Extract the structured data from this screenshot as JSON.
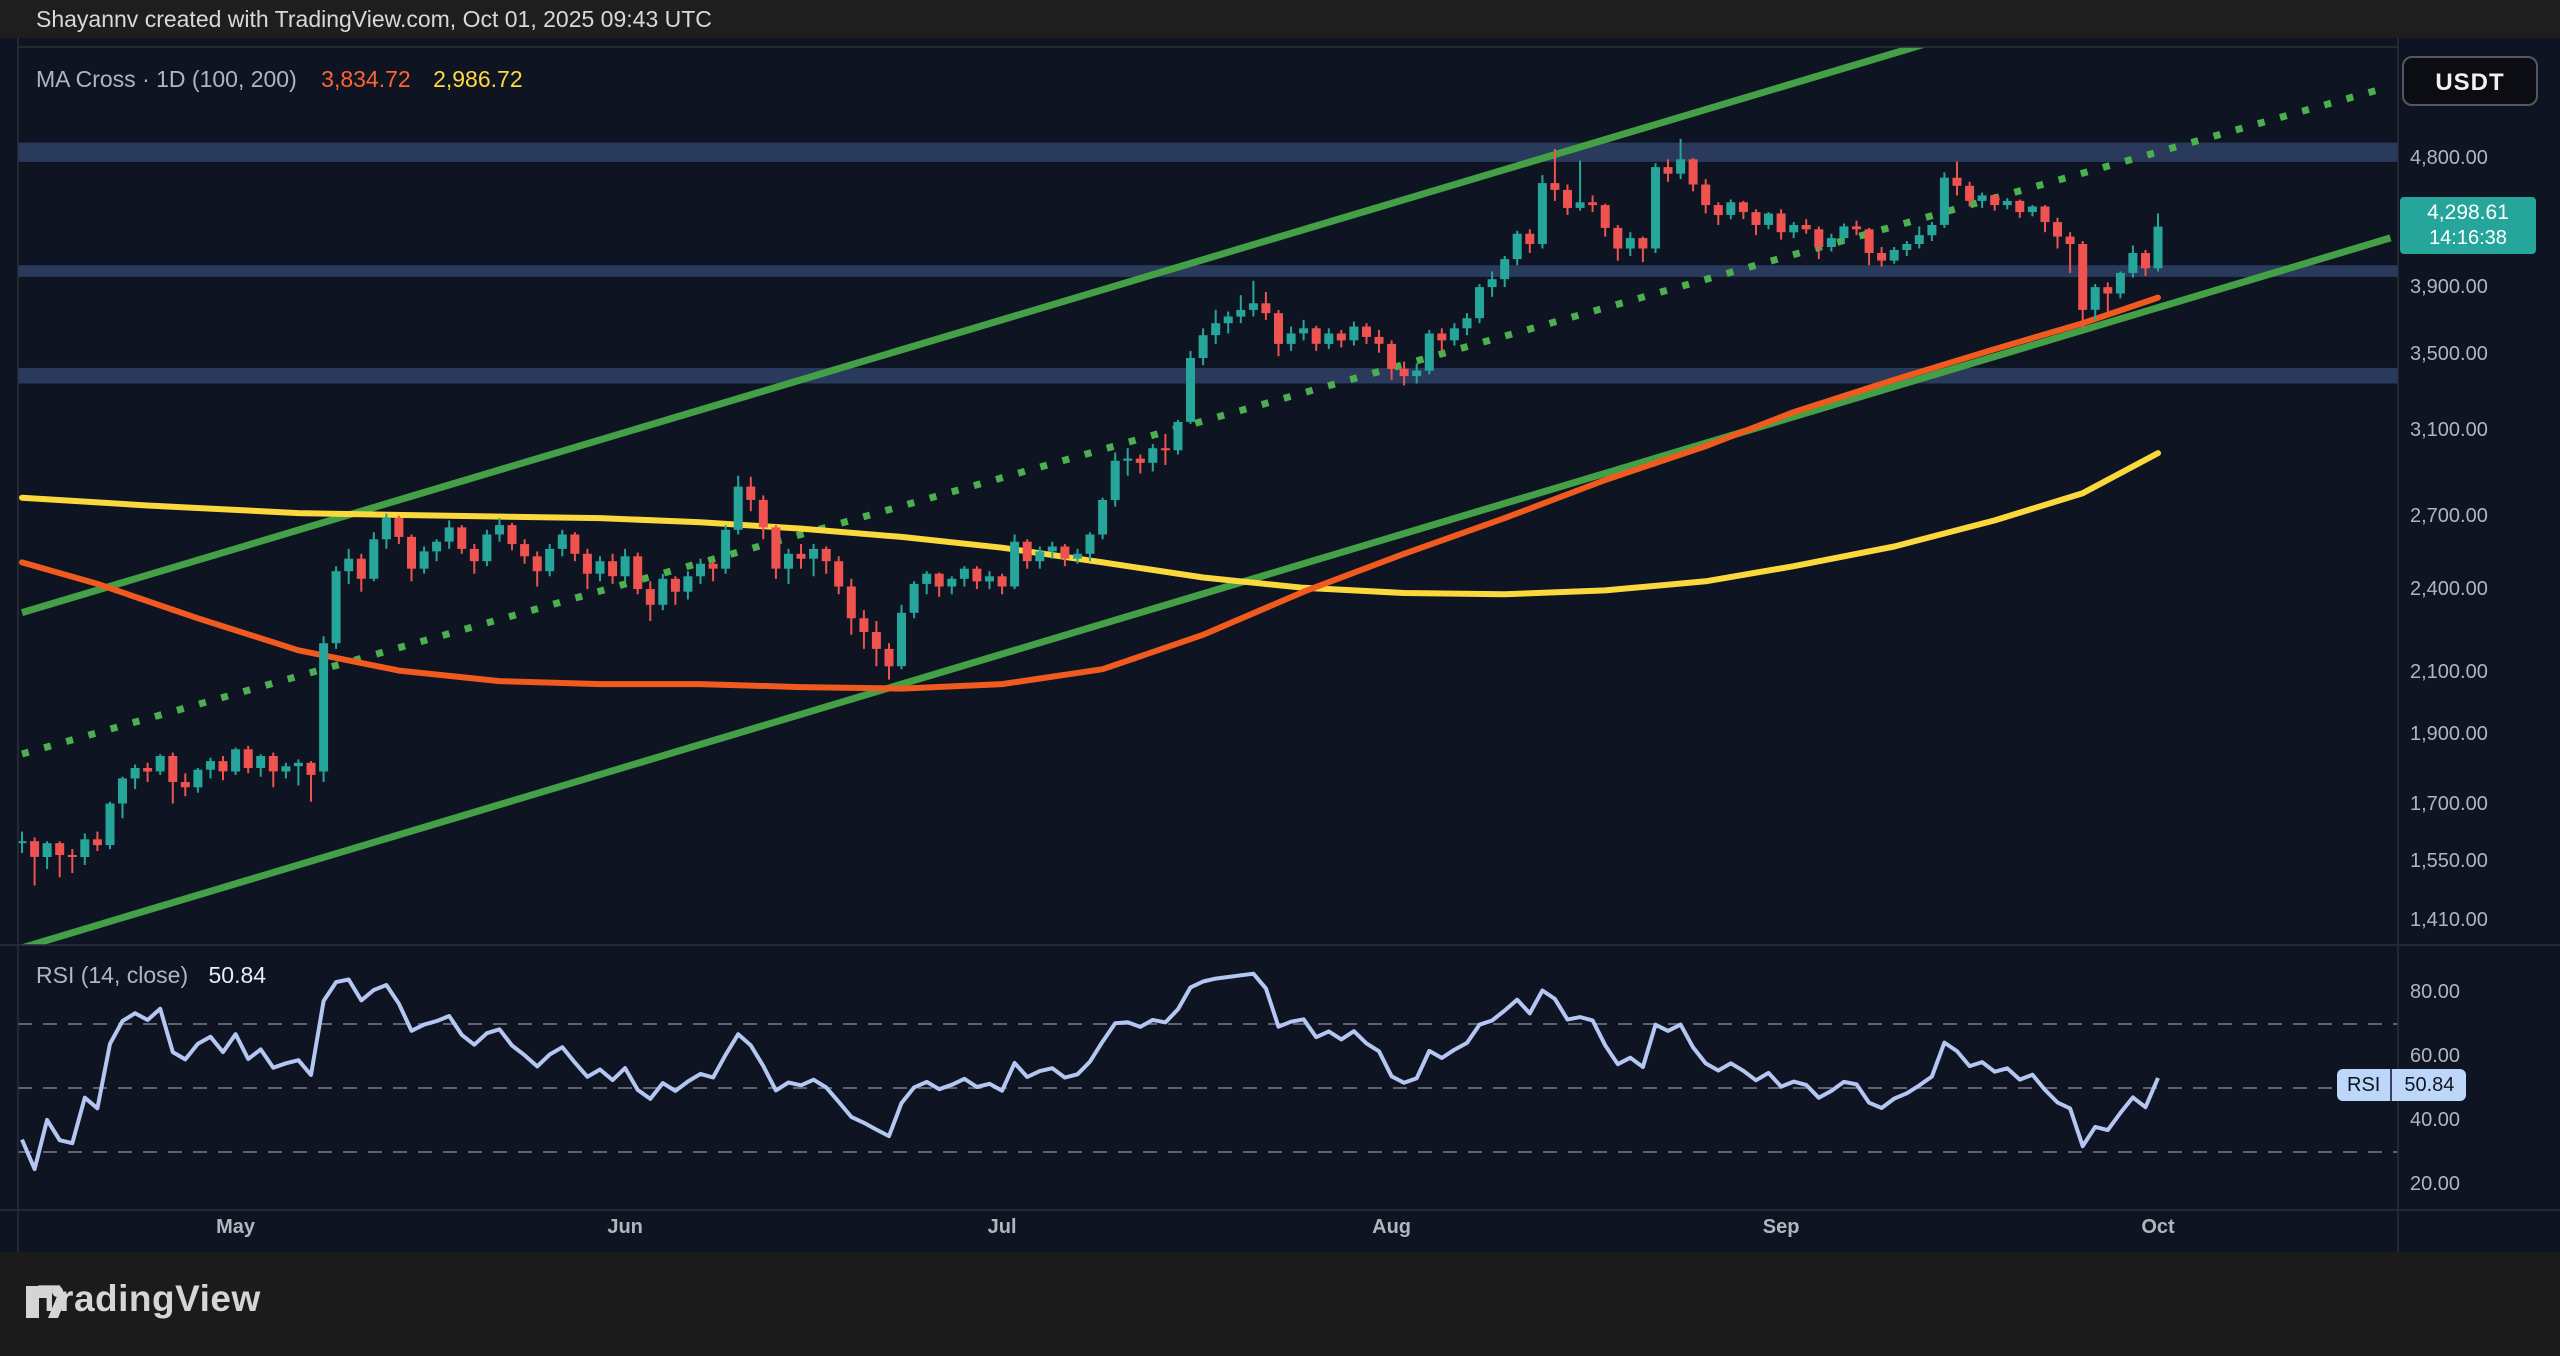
{
  "header": {
    "attribution": "Shayannv created with TradingView.com, Oct 01, 2025 09:43 UTC"
  },
  "legend": {
    "label": "MA Cross · 1D (100, 200)",
    "ma100_value": "3,834.72",
    "ma200_value": "2,986.72"
  },
  "rsi_panel": {
    "legend": "RSI (14, close)",
    "value": "50.84",
    "badge_label": "RSI",
    "badge_value": "50.84",
    "ticks": [
      {
        "label": "80.00",
        "v": 80
      },
      {
        "label": "60.00",
        "v": 60
      },
      {
        "label": "40.00",
        "v": 40
      },
      {
        "label": "20.00",
        "v": 20
      }
    ],
    "dashed_levels": [
      70,
      50,
      30
    ],
    "last_value": 50.84
  },
  "price_axis": {
    "currency_button": "USDT",
    "last_price_label": "4,298.61",
    "countdown": "14:16:38",
    "last_price": 4298.61,
    "ticks": [
      {
        "label": "4,800.00",
        "p": 4800
      },
      {
        "label": "3,900.00",
        "p": 3900
      },
      {
        "label": "3,500.00",
        "p": 3500
      },
      {
        "label": "3,100.00",
        "p": 3100
      },
      {
        "label": "2,700.00",
        "p": 2700
      },
      {
        "label": "2,400.00",
        "p": 2400
      },
      {
        "label": "2,100.00",
        "p": 2100
      },
      {
        "label": "1,900.00",
        "p": 1900
      },
      {
        "label": "1,700.00",
        "p": 1700
      },
      {
        "label": "1,550.00",
        "p": 1550
      },
      {
        "label": "1,410.00",
        "p": 1410
      }
    ]
  },
  "time_axis": {
    "months": [
      {
        "label": "May",
        "i": 17
      },
      {
        "label": "Jun",
        "i": 48
      },
      {
        "label": "Jul",
        "i": 78
      },
      {
        "label": "Aug",
        "i": 109
      },
      {
        "label": "Sep",
        "i": 140
      },
      {
        "label": "Oct",
        "i": 170
      }
    ]
  },
  "footer": {
    "brand": "TradingView"
  },
  "colors": {
    "bg": "#0e1421",
    "up": "#26a69a",
    "down": "#ef5350",
    "ma100": "#f05a1e",
    "ma200": "#fbd93d",
    "channel": "#43a047",
    "dotted": "#4caf50",
    "band": "rgba(88,120,190,0.38)",
    "rsi_line": "#b3c7f2",
    "grid_dash": "#5d6370",
    "frame": "#2a2e39"
  },
  "chart_data": {
    "type": "candlestick",
    "interval": "1D",
    "quote_currency": "USDT",
    "price_scale": "log",
    "indicators": [
      "MA Cross (100, 200)",
      "RSI (14, close)"
    ],
    "support_resistance_zones": [
      {
        "from": 4770,
        "to": 4920
      },
      {
        "from": 3965,
        "to": 4040
      },
      {
        "from": 3340,
        "to": 3425
      }
    ],
    "trendlines": [
      {
        "name": "channel-upper",
        "style": "solid",
        "p1": [
          0,
          2311
        ],
        "p2": [
          188.5,
          7211
        ]
      },
      {
        "name": "channel-lower",
        "style": "solid",
        "p1": [
          0,
          1348
        ],
        "p2": [
          188.5,
          4221
        ]
      },
      {
        "name": "channel-mid",
        "style": "dotted",
        "p1": [
          0,
          1841
        ],
        "p2": [
          188.5,
          5386
        ]
      }
    ],
    "ma100": [
      [
        0,
        2505
      ],
      [
        6,
        2420
      ],
      [
        14,
        2290
      ],
      [
        22,
        2175
      ],
      [
        30,
        2105
      ],
      [
        38,
        2070
      ],
      [
        46,
        2060
      ],
      [
        54,
        2060
      ],
      [
        62,
        2050
      ],
      [
        70,
        2045
      ],
      [
        78,
        2060
      ],
      [
        86,
        2110
      ],
      [
        94,
        2230
      ],
      [
        102,
        2390
      ],
      [
        110,
        2540
      ],
      [
        118,
        2690
      ],
      [
        126,
        2860
      ],
      [
        134,
        3020
      ],
      [
        141,
        3190
      ],
      [
        149,
        3360
      ],
      [
        157,
        3530
      ],
      [
        164,
        3680
      ],
      [
        170,
        3834.72
      ]
    ],
    "ma200": [
      [
        0,
        2780
      ],
      [
        10,
        2745
      ],
      [
        22,
        2712
      ],
      [
        34,
        2700
      ],
      [
        46,
        2690
      ],
      [
        54,
        2672
      ],
      [
        62,
        2645
      ],
      [
        70,
        2610
      ],
      [
        78,
        2565
      ],
      [
        86,
        2505
      ],
      [
        94,
        2445
      ],
      [
        102,
        2405
      ],
      [
        110,
        2385
      ],
      [
        118,
        2380
      ],
      [
        126,
        2395
      ],
      [
        134,
        2430
      ],
      [
        141,
        2490
      ],
      [
        149,
        2570
      ],
      [
        157,
        2680
      ],
      [
        164,
        2800
      ],
      [
        170,
        2986.72
      ]
    ],
    "rsi_seed_closes": [
      1640,
      1632,
      1638,
      1628,
      1634,
      1624,
      1630,
      1618,
      1626,
      1614,
      1622,
      1610,
      1618,
      1606,
      1600
    ],
    "candles": [
      [
        1600,
        1625,
        1570,
        1600
      ],
      [
        1600,
        1610,
        1490,
        1560
      ],
      [
        1560,
        1600,
        1530,
        1595
      ],
      [
        1595,
        1600,
        1510,
        1565
      ],
      [
        1565,
        1580,
        1520,
        1560
      ],
      [
        1560,
        1620,
        1540,
        1605
      ],
      [
        1605,
        1625,
        1575,
        1590
      ],
      [
        1590,
        1705,
        1580,
        1700
      ],
      [
        1700,
        1775,
        1660,
        1770
      ],
      [
        1770,
        1810,
        1740,
        1800
      ],
      [
        1800,
        1815,
        1760,
        1790
      ],
      [
        1790,
        1840,
        1780,
        1835
      ],
      [
        1835,
        1845,
        1700,
        1760
      ],
      [
        1760,
        1785,
        1720,
        1745
      ],
      [
        1745,
        1800,
        1730,
        1795
      ],
      [
        1795,
        1830,
        1770,
        1820
      ],
      [
        1820,
        1835,
        1765,
        1790
      ],
      [
        1790,
        1860,
        1780,
        1855
      ],
      [
        1855,
        1865,
        1785,
        1800
      ],
      [
        1800,
        1840,
        1775,
        1835
      ],
      [
        1835,
        1845,
        1745,
        1790
      ],
      [
        1790,
        1815,
        1770,
        1805
      ],
      [
        1805,
        1825,
        1750,
        1815
      ],
      [
        1815,
        1820,
        1705,
        1780
      ],
      [
        1790,
        2225,
        1760,
        2200
      ],
      [
        2200,
        2490,
        2180,
        2470
      ],
      [
        2470,
        2560,
        2420,
        2520
      ],
      [
        2520,
        2540,
        2390,
        2440
      ],
      [
        2440,
        2630,
        2430,
        2600
      ],
      [
        2600,
        2710,
        2560,
        2690
      ],
      [
        2690,
        2700,
        2580,
        2610
      ],
      [
        2610,
        2620,
        2430,
        2480
      ],
      [
        2480,
        2570,
        2460,
        2550
      ],
      [
        2550,
        2600,
        2510,
        2590
      ],
      [
        2590,
        2680,
        2560,
        2650
      ],
      [
        2650,
        2660,
        2540,
        2560
      ],
      [
        2560,
        2580,
        2460,
        2510
      ],
      [
        2510,
        2640,
        2490,
        2620
      ],
      [
        2620,
        2690,
        2590,
        2660
      ],
      [
        2660,
        2670,
        2555,
        2580
      ],
      [
        2580,
        2600,
        2500,
        2530
      ],
      [
        2530,
        2550,
        2410,
        2470
      ],
      [
        2470,
        2580,
        2450,
        2560
      ],
      [
        2560,
        2640,
        2530,
        2620
      ],
      [
        2620,
        2630,
        2510,
        2540
      ],
      [
        2540,
        2560,
        2400,
        2460
      ],
      [
        2460,
        2530,
        2430,
        2510
      ],
      [
        2510,
        2540,
        2420,
        2450
      ],
      [
        2450,
        2560,
        2430,
        2530
      ],
      [
        2530,
        2545,
        2380,
        2400
      ],
      [
        2400,
        2430,
        2280,
        2340
      ],
      [
        2340,
        2460,
        2320,
        2440
      ],
      [
        2440,
        2450,
        2340,
        2390
      ],
      [
        2390,
        2470,
        2360,
        2450
      ],
      [
        2450,
        2520,
        2420,
        2500
      ],
      [
        2500,
        2510,
        2430,
        2480
      ],
      [
        2480,
        2660,
        2460,
        2640
      ],
      [
        2640,
        2880,
        2620,
        2830
      ],
      [
        2830,
        2875,
        2720,
        2770
      ],
      [
        2770,
        2790,
        2600,
        2650
      ],
      [
        2650,
        2660,
        2440,
        2480
      ],
      [
        2480,
        2560,
        2420,
        2540
      ],
      [
        2540,
        2580,
        2480,
        2520
      ],
      [
        2520,
        2580,
        2450,
        2560
      ],
      [
        2560,
        2570,
        2460,
        2510
      ],
      [
        2510,
        2530,
        2380,
        2410
      ],
      [
        2410,
        2440,
        2230,
        2290
      ],
      [
        2290,
        2320,
        2180,
        2240
      ],
      [
        2240,
        2280,
        2120,
        2180
      ],
      [
        2180,
        2200,
        2075,
        2120
      ],
      [
        2120,
        2340,
        2110,
        2310
      ],
      [
        2310,
        2430,
        2290,
        2420
      ],
      [
        2420,
        2470,
        2380,
        2460
      ],
      [
        2460,
        2465,
        2370,
        2410
      ],
      [
        2410,
        2450,
        2380,
        2440
      ],
      [
        2440,
        2490,
        2410,
        2480
      ],
      [
        2480,
        2490,
        2400,
        2430
      ],
      [
        2430,
        2470,
        2400,
        2450
      ],
      [
        2450,
        2460,
        2380,
        2410
      ],
      [
        2410,
        2620,
        2400,
        2590
      ],
      [
        2590,
        2600,
        2480,
        2510
      ],
      [
        2510,
        2570,
        2480,
        2550
      ],
      [
        2550,
        2590,
        2520,
        2570
      ],
      [
        2570,
        2580,
        2490,
        2520
      ],
      [
        2520,
        2560,
        2500,
        2540
      ],
      [
        2540,
        2630,
        2510,
        2620
      ],
      [
        2620,
        2780,
        2600,
        2770
      ],
      [
        2770,
        2990,
        2740,
        2950
      ],
      [
        2950,
        3010,
        2880,
        2960
      ],
      [
        2960,
        2980,
        2890,
        2940
      ],
      [
        2940,
        3030,
        2900,
        3010
      ],
      [
        3010,
        3080,
        2930,
        3000
      ],
      [
        3000,
        3150,
        2980,
        3140
      ],
      [
        3140,
        3520,
        3130,
        3480
      ],
      [
        3480,
        3650,
        3440,
        3610
      ],
      [
        3610,
        3760,
        3560,
        3680
      ],
      [
        3680,
        3750,
        3620,
        3720
      ],
      [
        3720,
        3850,
        3680,
        3760
      ],
      [
        3760,
        3940,
        3720,
        3800
      ],
      [
        3800,
        3870,
        3700,
        3740
      ],
      [
        3740,
        3760,
        3490,
        3560
      ],
      [
        3560,
        3660,
        3520,
        3620
      ],
      [
        3620,
        3700,
        3580,
        3650
      ],
      [
        3650,
        3665,
        3520,
        3560
      ],
      [
        3560,
        3650,
        3530,
        3620
      ],
      [
        3620,
        3640,
        3540,
        3580
      ],
      [
        3580,
        3690,
        3550,
        3660
      ],
      [
        3660,
        3680,
        3560,
        3600
      ],
      [
        3600,
        3640,
        3510,
        3560
      ],
      [
        3560,
        3580,
        3360,
        3420
      ],
      [
        3420,
        3460,
        3330,
        3380
      ],
      [
        3380,
        3450,
        3340,
        3410
      ],
      [
        3410,
        3640,
        3390,
        3620
      ],
      [
        3620,
        3650,
        3520,
        3580
      ],
      [
        3580,
        3680,
        3550,
        3650
      ],
      [
        3650,
        3740,
        3610,
        3710
      ],
      [
        3710,
        3920,
        3680,
        3900
      ],
      [
        3900,
        4000,
        3840,
        3950
      ],
      [
        3950,
        4100,
        3900,
        4080
      ],
      [
        4080,
        4270,
        4040,
        4250
      ],
      [
        4250,
        4280,
        4120,
        4180
      ],
      [
        4180,
        4670,
        4150,
        4610
      ],
      [
        4610,
        4870,
        4480,
        4560
      ],
      [
        4560,
        4600,
        4380,
        4430
      ],
      [
        4430,
        4780,
        4410,
        4470
      ],
      [
        4470,
        4520,
        4400,
        4450
      ],
      [
        4450,
        4460,
        4230,
        4290
      ],
      [
        4290,
        4310,
        4070,
        4150
      ],
      [
        4150,
        4260,
        4100,
        4220
      ],
      [
        4220,
        4230,
        4060,
        4150
      ],
      [
        4150,
        4760,
        4120,
        4730
      ],
      [
        4730,
        4790,
        4620,
        4680
      ],
      [
        4680,
        4950,
        4640,
        4790
      ],
      [
        4790,
        4800,
        4550,
        4600
      ],
      [
        4600,
        4640,
        4390,
        4450
      ],
      [
        4450,
        4470,
        4310,
        4380
      ],
      [
        4380,
        4490,
        4350,
        4470
      ],
      [
        4470,
        4480,
        4350,
        4400
      ],
      [
        4400,
        4420,
        4240,
        4310
      ],
      [
        4310,
        4400,
        4280,
        4390
      ],
      [
        4390,
        4420,
        4210,
        4260
      ],
      [
        4260,
        4330,
        4220,
        4310
      ],
      [
        4310,
        4350,
        4250,
        4280
      ],
      [
        4280,
        4300,
        4080,
        4160
      ],
      [
        4160,
        4250,
        4130,
        4220
      ],
      [
        4220,
        4320,
        4180,
        4300
      ],
      [
        4300,
        4340,
        4240,
        4280
      ],
      [
        4280,
        4290,
        4040,
        4120
      ],
      [
        4120,
        4160,
        4030,
        4070
      ],
      [
        4070,
        4160,
        4050,
        4140
      ],
      [
        4140,
        4200,
        4100,
        4180
      ],
      [
        4180,
        4300,
        4150,
        4240
      ],
      [
        4240,
        4330,
        4200,
        4310
      ],
      [
        4310,
        4690,
        4290,
        4650
      ],
      [
        4650,
        4772,
        4520,
        4590
      ],
      [
        4590,
        4620,
        4440,
        4480
      ],
      [
        4480,
        4540,
        4430,
        4520
      ],
      [
        4520,
        4530,
        4410,
        4450
      ],
      [
        4450,
        4500,
        4420,
        4480
      ],
      [
        4480,
        4490,
        4360,
        4400
      ],
      [
        4400,
        4450,
        4370,
        4440
      ],
      [
        4440,
        4450,
        4260,
        4330
      ],
      [
        4330,
        4360,
        4150,
        4230
      ],
      [
        4230,
        4260,
        3990,
        4180
      ],
      [
        4180,
        4200,
        3650,
        3760
      ],
      [
        3760,
        3920,
        3700,
        3900
      ],
      [
        3900,
        3930,
        3750,
        3860
      ],
      [
        3860,
        4000,
        3830,
        3990
      ],
      [
        3990,
        4170,
        3960,
        4120
      ],
      [
        4120,
        4140,
        3970,
        4020
      ],
      [
        4020,
        4390,
        4000,
        4298.61
      ]
    ]
  }
}
